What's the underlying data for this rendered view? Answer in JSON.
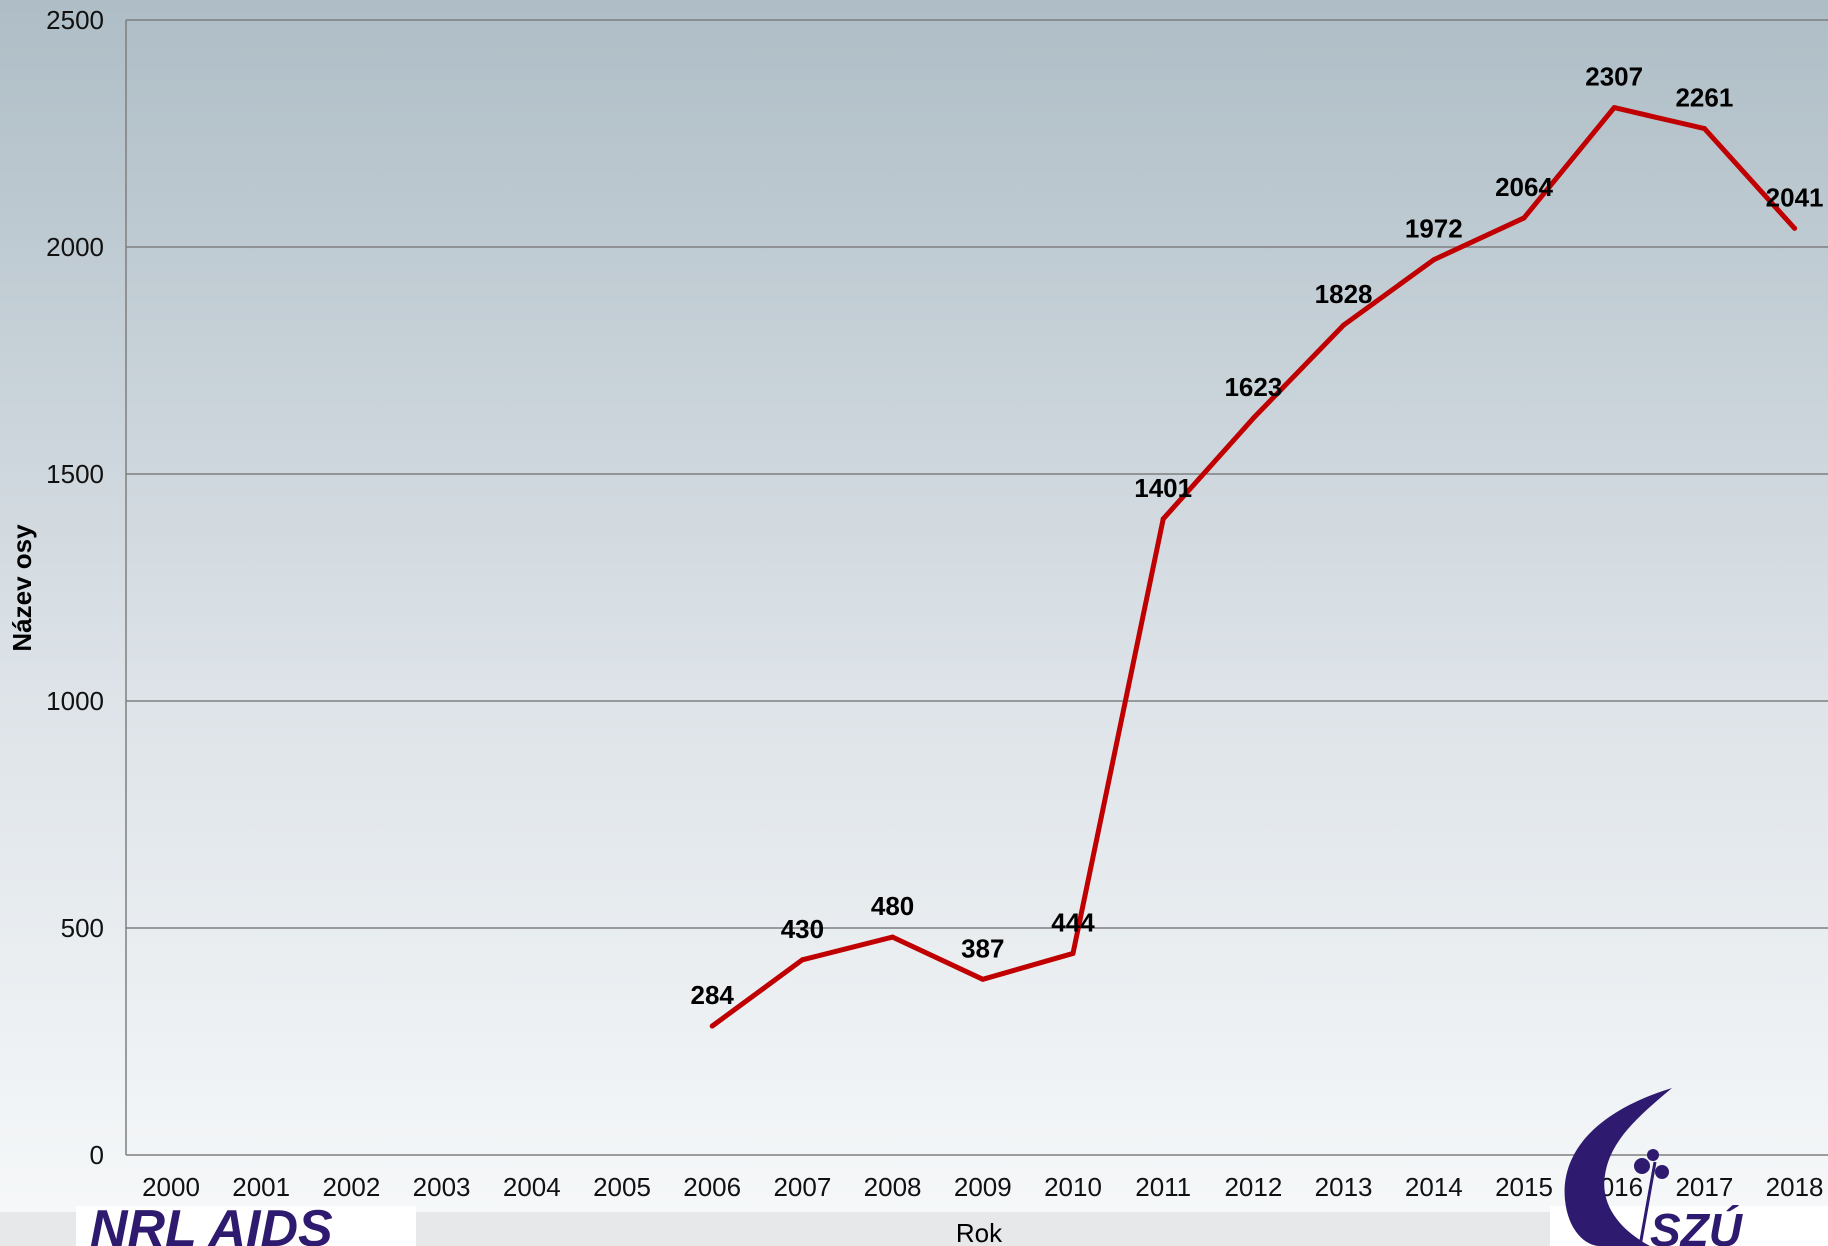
{
  "chart_data": {
    "type": "line",
    "title": "",
    "xlabel": "Rok",
    "ylabel": "Název osy",
    "categories": [
      "2000",
      "2001",
      "2002",
      "2003",
      "2004",
      "2005",
      "2006",
      "2007",
      "2008",
      "2009",
      "2010",
      "2011",
      "2012",
      "2013",
      "2014",
      "2015",
      "2016",
      "2017",
      "2018"
    ],
    "series": [
      {
        "values": [
          null,
          null,
          null,
          null,
          null,
          null,
          284,
          430,
          480,
          387,
          444,
          1401,
          1623,
          1828,
          1972,
          2064,
          2307,
          2261,
          2041
        ],
        "color": "#c00000"
      }
    ],
    "ylim": [
      0,
      2500
    ],
    "yticks": [
      0,
      500,
      1000,
      1500,
      2000,
      2500
    ],
    "grid": true,
    "legend": "none"
  },
  "logos": {
    "left": "NRL AIDS",
    "right": "SZÚ"
  },
  "colors": {
    "background_top": "#aebdc6",
    "background_bottom": "#f7f9fa",
    "line": "#c00000",
    "logo": "#2e1a6e"
  }
}
